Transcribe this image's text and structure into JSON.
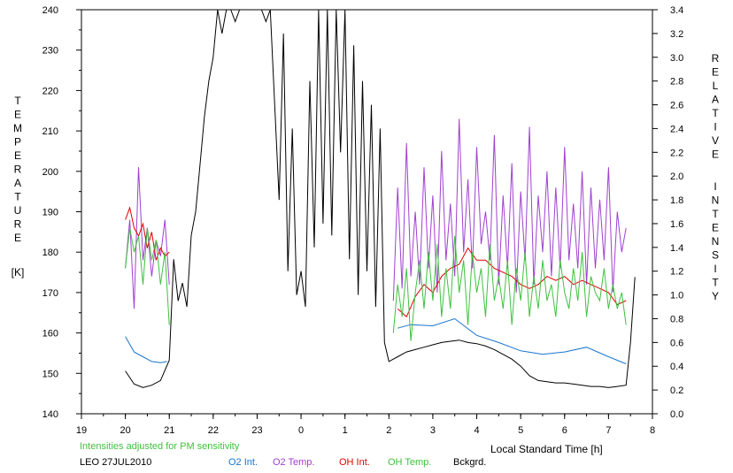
{
  "chart_data": {
    "type": "line",
    "xlabel": "Local Standard Time [h]",
    "ylabel_left_letters": [
      "T",
      "E",
      "M",
      "P",
      "E",
      "R",
      "A",
      "T",
      "U",
      "R",
      "E"
    ],
    "ylabel_left_unit": "[K]",
    "ylabel_right_word1": [
      "R",
      "E",
      "L",
      "A",
      "T",
      "I",
      "V",
      "E"
    ],
    "ylabel_right_word2": [
      "I",
      "N",
      "T",
      "E",
      "N",
      "S",
      "I",
      "T",
      "Y"
    ],
    "xlim": [
      19,
      32
    ],
    "ylim_left": [
      140,
      240
    ],
    "ylim_right": [
      0.0,
      3.4
    ],
    "x_tick_values": [
      19,
      20,
      21,
      22,
      23,
      24,
      25,
      26,
      27,
      28,
      29,
      30,
      31,
      32
    ],
    "x_tick_labels": [
      "19",
      "20",
      "21",
      "22",
      "23",
      "0",
      "1",
      "2",
      "3",
      "4",
      "5",
      "6",
      "7",
      "8"
    ],
    "y_left_tick_values": [
      140,
      150,
      160,
      170,
      180,
      190,
      200,
      210,
      220,
      230,
      240
    ],
    "y_left_tick_labels": [
      "140",
      "150",
      "160",
      "170",
      "180",
      "190",
      "200",
      "210",
      "220",
      "230",
      "240"
    ],
    "y_right_tick_values": [
      0.0,
      0.2,
      0.4,
      0.6,
      0.8,
      1.0,
      1.2,
      1.4,
      1.6,
      1.8,
      2.0,
      2.2,
      2.4,
      2.6,
      2.8,
      3.0,
      3.2,
      3.4
    ],
    "y_right_tick_labels": [
      "0.0",
      "0.2",
      "0.4",
      "0.6",
      "0.8",
      "1.0",
      "1.2",
      "1.4",
      "1.6",
      "1.8",
      "2.0",
      "2.2",
      "2.4",
      "2.6",
      "2.8",
      "3.0",
      "3.2",
      "3.4"
    ],
    "note": "Intensities adjusted for PM sensitivity",
    "station_date": "LEO 27JUL2010",
    "series": [
      {
        "name": "O2 Int.",
        "color": "#1874cd",
        "axis": "right",
        "x": [
          20.0,
          20.2,
          20.4,
          20.6,
          20.8,
          20.95,
          22.0,
          23.0,
          24.0,
          25.0,
          26.0,
          26.2,
          26.5,
          27.0,
          27.5,
          28.0,
          28.5,
          29.0,
          29.5,
          30.0,
          30.5,
          31.0,
          31.4
        ],
        "y": [
          0.65,
          0.52,
          0.48,
          0.44,
          0.43,
          0.44,
          null,
          null,
          null,
          null,
          null,
          0.72,
          0.75,
          0.74,
          0.8,
          0.66,
          0.6,
          0.53,
          0.5,
          0.52,
          0.56,
          0.48,
          0.42
        ]
      },
      {
        "name": "O2 Temp.",
        "color": "#a040d0",
        "axis": "left",
        "x": [
          20.0,
          20.1,
          20.2,
          20.3,
          20.4,
          20.5,
          20.6,
          20.7,
          20.8,
          20.9,
          21.0,
          22.0,
          23.0,
          24.0,
          25.0,
          26.0,
          26.1,
          26.2,
          26.3,
          26.4,
          26.5,
          26.6,
          26.7,
          26.8,
          26.9,
          27.0,
          27.1,
          27.2,
          27.3,
          27.4,
          27.5,
          27.6,
          27.7,
          27.8,
          27.9,
          28.0,
          28.1,
          28.2,
          28.3,
          28.4,
          28.5,
          28.6,
          28.7,
          28.8,
          28.9,
          29.0,
          29.1,
          29.2,
          29.3,
          29.4,
          29.5,
          29.6,
          29.7,
          29.8,
          29.9,
          30.0,
          30.1,
          30.2,
          30.3,
          30.4,
          30.5,
          30.6,
          30.7,
          30.8,
          30.9,
          31.0,
          31.1,
          31.2,
          31.3,
          31.4
        ],
        "y": [
          176,
          188,
          166,
          201,
          178,
          186,
          174,
          183,
          179,
          188,
          172,
          null,
          null,
          null,
          null,
          null,
          168,
          196,
          171,
          207,
          174,
          190,
          172,
          201,
          176,
          194,
          170,
          205,
          178,
          192,
          174,
          213,
          180,
          198,
          176,
          206,
          182,
          190,
          178,
          209,
          172,
          194,
          176,
          202,
          170,
          195,
          178,
          211,
          172,
          194,
          180,
          200,
          174,
          196,
          176,
          206,
          178,
          192,
          176,
          200,
          172,
          196,
          176,
          193,
          178,
          201,
          170,
          190,
          180,
          186
        ]
      },
      {
        "name": "OH Int.",
        "color": "#e00000",
        "axis": "left",
        "x": [
          20.0,
          20.1,
          20.2,
          20.3,
          20.4,
          20.5,
          20.6,
          20.7,
          20.8,
          20.9,
          21.0,
          22.0,
          23.0,
          24.0,
          25.0,
          26.0,
          26.2,
          26.4,
          26.6,
          26.8,
          27.0,
          27.2,
          27.4,
          27.6,
          27.8,
          28.0,
          28.2,
          28.4,
          28.6,
          28.8,
          29.0,
          29.2,
          29.4,
          29.6,
          29.8,
          30.0,
          30.2,
          30.4,
          30.6,
          30.8,
          31.0,
          31.2,
          31.4
        ],
        "y": [
          188,
          191,
          186,
          184,
          187,
          181,
          185,
          178,
          181,
          179,
          180,
          null,
          null,
          null,
          null,
          null,
          166,
          164,
          169,
          172,
          170,
          174,
          176,
          177,
          181,
          178,
          178,
          176,
          175,
          174,
          172,
          171,
          172,
          174,
          173,
          174,
          172,
          173,
          172,
          171,
          170,
          167,
          168
        ]
      },
      {
        "name": "OH Temp.",
        "color": "#40c040",
        "axis": "left",
        "x": [
          20.0,
          20.1,
          20.2,
          20.3,
          20.4,
          20.5,
          20.6,
          20.7,
          20.8,
          20.9,
          21.0,
          22.0,
          23.0,
          24.0,
          25.0,
          26.0,
          26.1,
          26.2,
          26.3,
          26.4,
          26.5,
          26.6,
          26.7,
          26.8,
          26.9,
          27.0,
          27.1,
          27.2,
          27.3,
          27.4,
          27.5,
          27.6,
          27.7,
          27.8,
          27.9,
          28.0,
          28.1,
          28.2,
          28.3,
          28.4,
          28.5,
          28.6,
          28.7,
          28.8,
          28.9,
          29.0,
          29.1,
          29.2,
          29.3,
          29.4,
          29.5,
          29.6,
          29.7,
          29.8,
          29.9,
          30.0,
          30.1,
          30.2,
          30.3,
          30.4,
          30.5,
          30.6,
          30.7,
          30.8,
          30.9,
          31.0,
          31.1,
          31.2,
          31.3,
          31.4
        ],
        "y": [
          176,
          186,
          180,
          184,
          172,
          186,
          178,
          183,
          172,
          180,
          162,
          null,
          null,
          null,
          null,
          null,
          160,
          172,
          164,
          176,
          158,
          170,
          178,
          166,
          180,
          168,
          182,
          164,
          176,
          166,
          184,
          170,
          178,
          162,
          180,
          170,
          176,
          164,
          182,
          168,
          174,
          166,
          178,
          162,
          176,
          168,
          180,
          164,
          174,
          166,
          178,
          168,
          172,
          164,
          178,
          170,
          166,
          176,
          168,
          180,
          164,
          174,
          170,
          168,
          176,
          166,
          172,
          166,
          170,
          162
        ]
      },
      {
        "name": "Bckgrd.",
        "color": "#000000",
        "axis": "right",
        "x": [
          20.0,
          20.2,
          20.4,
          20.6,
          20.8,
          21.0,
          21.1,
          21.2,
          21.3,
          21.4,
          21.5,
          21.6,
          21.7,
          21.8,
          21.9,
          22.0,
          22.1,
          22.2,
          22.3,
          22.4,
          22.5,
          22.6,
          22.7,
          22.8,
          22.9,
          23.0,
          23.1,
          23.2,
          23.3,
          23.4,
          23.5,
          23.6,
          23.7,
          23.8,
          23.9,
          24.0,
          24.1,
          24.2,
          24.3,
          24.4,
          24.5,
          24.6,
          24.7,
          24.8,
          24.9,
          25.0,
          25.1,
          25.2,
          25.3,
          25.4,
          25.5,
          25.6,
          25.7,
          25.8,
          25.9,
          26.0,
          26.2,
          26.4,
          26.6,
          26.8,
          27.0,
          27.2,
          27.4,
          27.6,
          27.8,
          28.0,
          28.2,
          28.4,
          28.6,
          28.8,
          29.0,
          29.2,
          29.4,
          29.6,
          29.8,
          30.0,
          30.2,
          30.4,
          30.6,
          30.8,
          31.0,
          31.2,
          31.4,
          31.5,
          31.6
        ],
        "y": [
          0.36,
          0.25,
          0.22,
          0.24,
          0.28,
          0.45,
          1.3,
          0.95,
          1.1,
          0.9,
          1.5,
          1.7,
          2.1,
          2.5,
          2.8,
          3.0,
          3.4,
          3.2,
          3.4,
          3.4,
          3.3,
          3.4,
          3.4,
          3.4,
          3.4,
          3.4,
          3.4,
          3.3,
          3.4,
          2.6,
          1.8,
          3.2,
          1.2,
          2.4,
          1.0,
          1.2,
          0.9,
          2.8,
          1.4,
          3.4,
          1.6,
          3.4,
          1.5,
          3.4,
          2.2,
          3.4,
          1.3,
          3.1,
          1.0,
          2.8,
          1.2,
          2.6,
          0.9,
          2.4,
          0.6,
          0.44,
          0.48,
          0.52,
          0.54,
          0.56,
          0.58,
          0.6,
          0.61,
          0.62,
          0.6,
          0.59,
          0.57,
          0.54,
          0.5,
          0.46,
          0.4,
          0.32,
          0.28,
          0.27,
          0.26,
          0.26,
          0.25,
          0.24,
          0.23,
          0.23,
          0.22,
          0.23,
          0.24,
          0.6,
          1.15
        ]
      }
    ]
  }
}
